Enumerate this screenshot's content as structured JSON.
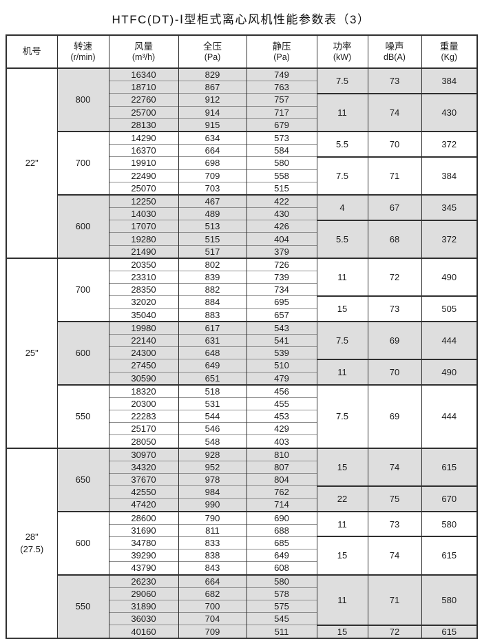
{
  "title": "HTFC(DT)-Ⅰ型柜式离心风机性能参数表（3）",
  "colors": {
    "shaded_band": "#dedede",
    "border_dark": "#2f2f2f",
    "border_light": "#8d8d8d",
    "text": "#1c1c1c"
  },
  "table": {
    "header": [
      {
        "line1": "机号",
        "line2": ""
      },
      {
        "line1": "转速",
        "line2": "(r/min)"
      },
      {
        "line1": "风量",
        "line2": "(m³/h)"
      },
      {
        "line1": "全压",
        "line2": "(Pa)"
      },
      {
        "line1": "静压",
        "line2": "(Pa)"
      },
      {
        "line1": "功率",
        "line2": "(kW)"
      },
      {
        "line1": "噪声",
        "line2": "dB(A)"
      },
      {
        "line1": "重量",
        "line2": "(Kg)"
      }
    ],
    "machines": [
      {
        "size_lines": [
          "22\""
        ],
        "groups": [
          {
            "speed": "800",
            "shaded": true,
            "rows": [
              [
                "16340",
                "829",
                "749"
              ],
              [
                "18710",
                "867",
                "763"
              ],
              [
                "22760",
                "912",
                "757"
              ],
              [
                "25700",
                "914",
                "717"
              ],
              [
                "28130",
                "915",
                "679"
              ]
            ],
            "perf": [
              {
                "span": 2,
                "power": "7.5",
                "noise": "73",
                "weight": "384"
              },
              {
                "span": 3,
                "power": "11",
                "noise": "74",
                "weight": "430"
              }
            ]
          },
          {
            "speed": "700",
            "shaded": false,
            "rows": [
              [
                "14290",
                "634",
                "573"
              ],
              [
                "16370",
                "664",
                "584"
              ],
              [
                "19910",
                "698",
                "580"
              ],
              [
                "22490",
                "709",
                "558"
              ],
              [
                "25070",
                "703",
                "515"
              ]
            ],
            "perf": [
              {
                "span": 2,
                "power": "5.5",
                "noise": "70",
                "weight": "372"
              },
              {
                "span": 3,
                "power": "7.5",
                "noise": "71",
                "weight": "384"
              }
            ]
          },
          {
            "speed": "600",
            "shaded": true,
            "rows": [
              [
                "12250",
                "467",
                "422"
              ],
              [
                "14030",
                "489",
                "430"
              ],
              [
                "17070",
                "513",
                "426"
              ],
              [
                "19280",
                "515",
                "404"
              ],
              [
                "21490",
                "517",
                "379"
              ]
            ],
            "perf": [
              {
                "span": 2,
                "power": "4",
                "noise": "67",
                "weight": "345"
              },
              {
                "span": 3,
                "power": "5.5",
                "noise": "68",
                "weight": "372"
              }
            ]
          }
        ]
      },
      {
        "size_lines": [
          "25\""
        ],
        "groups": [
          {
            "speed": "700",
            "shaded": false,
            "rows": [
              [
                "20350",
                "802",
                "726"
              ],
              [
                "23310",
                "839",
                "739"
              ],
              [
                "28350",
                "882",
                "734"
              ],
              [
                "32020",
                "884",
                "695"
              ],
              [
                "35040",
                "883",
                "657"
              ]
            ],
            "perf": [
              {
                "span": 3,
                "power": "11",
                "noise": "72",
                "weight": "490"
              },
              {
                "span": 2,
                "power": "15",
                "noise": "73",
                "weight": "505"
              }
            ]
          },
          {
            "speed": "600",
            "shaded": true,
            "rows": [
              [
                "19980",
                "617",
                "543"
              ],
              [
                "22140",
                "631",
                "541"
              ],
              [
                "24300",
                "648",
                "539"
              ],
              [
                "27450",
                "649",
                "510"
              ],
              [
                "30590",
                "651",
                "479"
              ]
            ],
            "perf": [
              {
                "span": 3,
                "power": "7.5",
                "noise": "69",
                "weight": "444"
              },
              {
                "span": 2,
                "power": "11",
                "noise": "70",
                "weight": "490"
              }
            ]
          },
          {
            "speed": "550",
            "shaded": false,
            "rows": [
              [
                "18320",
                "518",
                "456"
              ],
              [
                "20300",
                "531",
                "455"
              ],
              [
                "22283",
                "544",
                "453"
              ],
              [
                "25170",
                "546",
                "429"
              ],
              [
                "28050",
                "548",
                "403"
              ]
            ],
            "perf": [
              {
                "span": 5,
                "power": "7.5",
                "noise": "69",
                "weight": "444"
              }
            ]
          }
        ]
      },
      {
        "size_lines": [
          "28\"",
          "(27.5)"
        ],
        "groups": [
          {
            "speed": "650",
            "shaded": true,
            "rows": [
              [
                "30970",
                "928",
                "810"
              ],
              [
                "34320",
                "952",
                "807"
              ],
              [
                "37670",
                "978",
                "804"
              ],
              [
                "42550",
                "984",
                "762"
              ],
              [
                "47420",
                "990",
                "714"
              ]
            ],
            "perf": [
              {
                "span": 3,
                "power": "15",
                "noise": "74",
                "weight": "615"
              },
              {
                "span": 2,
                "power": "22",
                "noise": "75",
                "weight": "670"
              }
            ]
          },
          {
            "speed": "600",
            "shaded": false,
            "rows": [
              [
                "28600",
                "790",
                "690"
              ],
              [
                "31690",
                "811",
                "688"
              ],
              [
                "34780",
                "833",
                "685"
              ],
              [
                "39290",
                "838",
                "649"
              ],
              [
                "43790",
                "843",
                "608"
              ]
            ],
            "perf": [
              {
                "span": 2,
                "power": "11",
                "noise": "73",
                "weight": "580"
              },
              {
                "span": 3,
                "power": "15",
                "noise": "74",
                "weight": "615"
              }
            ]
          },
          {
            "speed": "550",
            "shaded": true,
            "rows": [
              [
                "26230",
                "664",
                "580"
              ],
              [
                "29060",
                "682",
                "578"
              ],
              [
                "31890",
                "700",
                "575"
              ],
              [
                "36030",
                "704",
                "545"
              ],
              [
                "40160",
                "709",
                "511"
              ]
            ],
            "perf": [
              {
                "span": 4,
                "power": "11",
                "noise": "71",
                "weight": "580"
              },
              {
                "span": 1,
                "power": "15",
                "noise": "72",
                "weight": "615"
              }
            ]
          }
        ]
      }
    ]
  }
}
